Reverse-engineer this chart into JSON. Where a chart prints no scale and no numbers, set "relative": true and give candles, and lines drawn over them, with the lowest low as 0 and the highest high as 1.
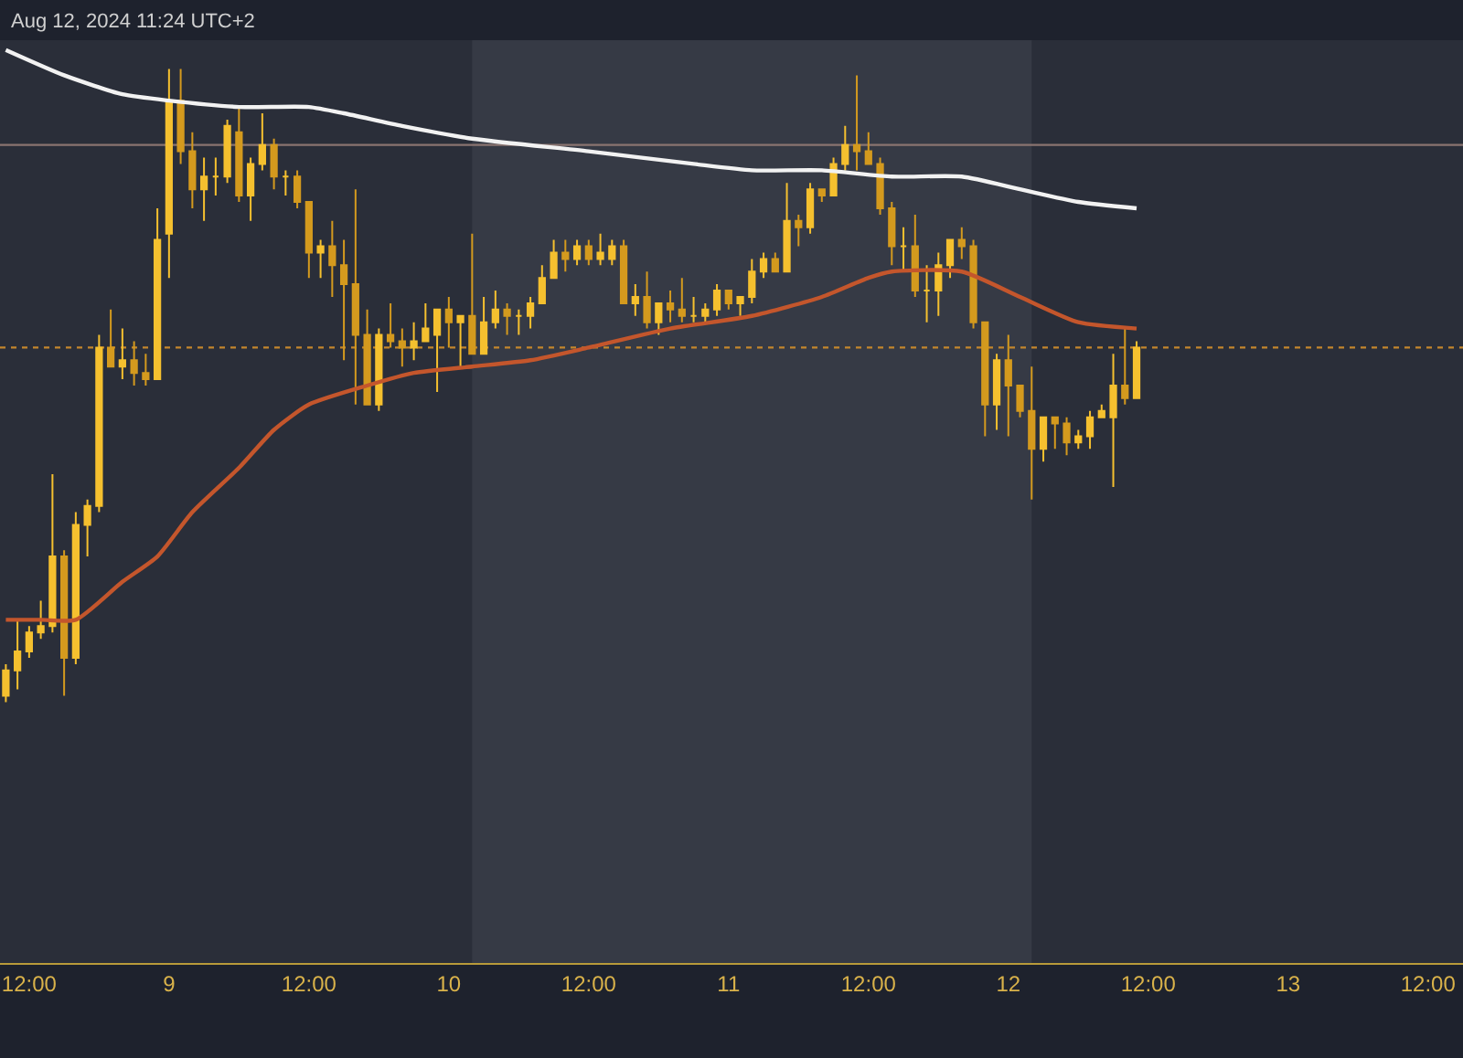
{
  "chart_data": {
    "type": "candlestick",
    "relative": true,
    "colors": [
      "#f5c02f",
      "#f5c02f",
      "#f5c02f",
      "#f5c02f",
      "#f5c02f",
      "#d49a1e",
      "#f5c02f",
      "#f5c02f",
      "#f5c02f",
      "#d49a1e",
      "#f5c02f",
      "#d49a1e",
      "#d49a1e",
      "#f5c02f",
      "#f5c02f",
      "#d49a1e",
      "#d49a1e",
      "#f5c02f",
      "#f5c02f",
      "#f5c02f",
      "#d49a1e",
      "#f5c02f",
      "#f5c02f",
      "#d49a1e",
      "#f5c02f",
      "#d49a1e",
      "#d49a1e",
      "#f5c02f",
      "#d49a1e",
      "#d49a1e",
      "#d49a1e",
      "#d49a1e",
      "#f5c02f",
      "#d49a1e",
      "#d49a1e",
      "#f5c02f",
      "#f5c02f",
      "#f5c02f",
      "#d49a1e",
      "#f5c02f",
      "#d49a1e",
      "#f5c02f",
      "#f5c02f",
      "#d49a1e",
      "#f5c02f",
      "#f5c02f",
      "#f5c02f",
      "#f5c02f",
      "#d49a1e",
      "#f5c02f",
      "#d49a1e",
      "#f5c02f",
      "#f5c02f",
      "#d49a1e",
      "#f5c02f",
      "#d49a1e",
      "#f5c02f",
      "#d49a1e",
      "#d49a1e",
      "#f5c02f",
      "#f5c02f",
      "#f5c02f",
      "#d49a1e",
      "#f5c02f",
      "#f5c02f",
      "#f5c02f",
      "#d49a1e",
      "#f5c02f",
      "#d49a1e",
      "#f5c02f",
      "#d49a1e",
      "#f5c02f",
      "#f5c02f",
      "#d49a1e",
      "#d49a1e",
      "#d49a1e",
      "#d49a1e",
      "#f5c02f",
      "#d49a1e",
      "#f5c02f",
      "#f5c02f",
      "#f5c02f",
      "#d49a1e",
      "#d49a1e",
      "#d49a1e",
      "#f5c02f",
      "#d49a1e",
      "#d49a1e",
      "#d49a1e",
      "#f5c02f",
      "#d49a1e",
      "#d49a1e",
      "#f5c02f",
      "#f5c02f",
      "#f5c02f",
      "#f5c02f",
      "#d49a1e",
      "#f5c02f"
    ],
    "annotations": [
      "Aug 12, 2024 11:24 UTC+2"
    ],
    "x": [
      "2024-08-08T10:00",
      "2024-08-08T11:00",
      "2024-08-08T12:00",
      "2024-08-08T13:00",
      "2024-08-08T14:00",
      "2024-08-08T15:00",
      "2024-08-08T16:00",
      "2024-08-08T17:00",
      "2024-08-08T18:00",
      "2024-08-08T19:00",
      "2024-08-08T20:00",
      "2024-08-08T21:00",
      "2024-08-08T22:00",
      "2024-08-08T23:00",
      "2024-08-09T00:00",
      "2024-08-09T01:00",
      "2024-08-09T02:00",
      "2024-08-09T03:00",
      "2024-08-09T04:00",
      "2024-08-09T05:00",
      "2024-08-09T06:00",
      "2024-08-09T07:00",
      "2024-08-09T08:00",
      "2024-08-09T09:00",
      "2024-08-09T10:00",
      "2024-08-09T11:00",
      "2024-08-09T12:00",
      "2024-08-09T13:00",
      "2024-08-09T14:00",
      "2024-08-09T15:00",
      "2024-08-09T16:00",
      "2024-08-09T17:00",
      "2024-08-09T18:00",
      "2024-08-09T19:00",
      "2024-08-09T20:00",
      "2024-08-09T21:00",
      "2024-08-09T22:00",
      "2024-08-09T23:00",
      "2024-08-10T00:00",
      "2024-08-10T01:00",
      "2024-08-10T02:00",
      "2024-08-10T03:00",
      "2024-08-10T04:00",
      "2024-08-10T05:00",
      "2024-08-10T06:00",
      "2024-08-10T07:00",
      "2024-08-10T08:00",
      "2024-08-10T09:00",
      "2024-08-10T10:00",
      "2024-08-10T11:00",
      "2024-08-10T12:00",
      "2024-08-10T13:00",
      "2024-08-10T14:00",
      "2024-08-10T15:00",
      "2024-08-10T16:00",
      "2024-08-10T17:00",
      "2024-08-10T18:00",
      "2024-08-10T19:00",
      "2024-08-10T20:00",
      "2024-08-10T21:00",
      "2024-08-10T22:00",
      "2024-08-10T23:00",
      "2024-08-11T00:00",
      "2024-08-11T01:00",
      "2024-08-11T02:00",
      "2024-08-11T03:00",
      "2024-08-11T04:00",
      "2024-08-11T05:00",
      "2024-08-11T06:00",
      "2024-08-11T07:00",
      "2024-08-11T08:00",
      "2024-08-11T09:00",
      "2024-08-11T10:00",
      "2024-08-11T11:00",
      "2024-08-11T12:00",
      "2024-08-11T13:00",
      "2024-08-11T14:00",
      "2024-08-11T15:00",
      "2024-08-11T16:00",
      "2024-08-11T17:00",
      "2024-08-11T18:00",
      "2024-08-11T19:00",
      "2024-08-11T20:00",
      "2024-08-11T21:00",
      "2024-08-11T22:00",
      "2024-08-11T23:00",
      "2024-08-12T00:00",
      "2024-08-12T01:00",
      "2024-08-12T02:00",
      "2024-08-12T03:00",
      "2024-08-12T04:00",
      "2024-08-12T05:00",
      "2024-08-12T06:00",
      "2024-08-12T07:00",
      "2024-08-12T08:00",
      "2024-08-12T09:00",
      "2024-08-12T10:00",
      "2024-08-12T11:00"
    ],
    "ohlc": [
      [
        0.01,
        0.06,
        0,
        0.05
      ],
      [
        0.05,
        0.13,
        0.02,
        0.08
      ],
      [
        0.08,
        0.12,
        0.07,
        0.11
      ],
      [
        0.11,
        0.16,
        0.1,
        0.12
      ],
      [
        0.12,
        0.36,
        0.11,
        0.23
      ],
      [
        0.23,
        0.24,
        0.01,
        0.07
      ],
      [
        0.07,
        0.3,
        0.06,
        0.28
      ],
      [
        0.28,
        0.32,
        0.23,
        0.31
      ],
      [
        0.31,
        0.58,
        0.3,
        0.56
      ],
      [
        0.56,
        0.62,
        0.53,
        0.53
      ],
      [
        0.53,
        0.59,
        0.51,
        0.54
      ],
      [
        0.54,
        0.57,
        0.5,
        0.52
      ],
      [
        0.52,
        0.55,
        0.5,
        0.51
      ],
      [
        0.51,
        0.78,
        0.51,
        0.73
      ],
      [
        0.74,
        1,
        0.67,
        0.95
      ],
      [
        0.95,
        1,
        0.85,
        0.87
      ],
      [
        0.87,
        0.9,
        0.78,
        0.81
      ],
      [
        0.81,
        0.86,
        0.76,
        0.83
      ],
      [
        0.83,
        0.86,
        0.8,
        0.83
      ],
      [
        0.83,
        0.92,
        0.82,
        0.91
      ],
      [
        0.9,
        0.94,
        0.79,
        0.8
      ],
      [
        0.8,
        0.86,
        0.76,
        0.85
      ],
      [
        0.85,
        0.93,
        0.84,
        0.88
      ],
      [
        0.88,
        0.89,
        0.81,
        0.83
      ],
      [
        0.83,
        0.84,
        0.8,
        0.83
      ],
      [
        0.83,
        0.84,
        0.78,
        0.79
      ],
      [
        0.79,
        0.79,
        0.67,
        0.71
      ],
      [
        0.71,
        0.73,
        0.67,
        0.72
      ],
      [
        0.72,
        0.76,
        0.64,
        0.69
      ],
      [
        0.69,
        0.73,
        0.54,
        0.66
      ],
      [
        0.66,
        0.81,
        0.47,
        0.58
      ],
      [
        0.58,
        0.62,
        0.47,
        0.47
      ],
      [
        0.47,
        0.59,
        0.46,
        0.58
      ],
      [
        0.58,
        0.63,
        0.56,
        0.57
      ],
      [
        0.57,
        0.59,
        0.53,
        0.56
      ],
      [
        0.56,
        0.6,
        0.54,
        0.57
      ],
      [
        0.57,
        0.63,
        0.57,
        0.59
      ],
      [
        0.58,
        0.62,
        0.49,
        0.62
      ],
      [
        0.62,
        0.64,
        0.56,
        0.6
      ],
      [
        0.6,
        0.61,
        0.53,
        0.61
      ],
      [
        0.61,
        0.74,
        0.55,
        0.55
      ],
      [
        0.55,
        0.64,
        0.55,
        0.6
      ],
      [
        0.6,
        0.65,
        0.59,
        0.62
      ],
      [
        0.62,
        0.63,
        0.58,
        0.61
      ],
      [
        0.61,
        0.62,
        0.58,
        0.61
      ],
      [
        0.61,
        0.64,
        0.59,
        0.63
      ],
      [
        0.63,
        0.69,
        0.63,
        0.67
      ],
      [
        0.67,
        0.73,
        0.67,
        0.71
      ],
      [
        0.71,
        0.73,
        0.68,
        0.7
      ],
      [
        0.7,
        0.73,
        0.69,
        0.72
      ],
      [
        0.72,
        0.73,
        0.69,
        0.7
      ],
      [
        0.7,
        0.74,
        0.69,
        0.71
      ],
      [
        0.7,
        0.73,
        0.69,
        0.72
      ],
      [
        0.72,
        0.73,
        0.63,
        0.63
      ],
      [
        0.63,
        0.66,
        0.61,
        0.64
      ],
      [
        0.64,
        0.68,
        0.59,
        0.6
      ],
      [
        0.6,
        0.63,
        0.58,
        0.63
      ],
      [
        0.63,
        0.65,
        0.6,
        0.62
      ],
      [
        0.62,
        0.67,
        0.6,
        0.61
      ],
      [
        0.61,
        0.64,
        0.6,
        0.61
      ],
      [
        0.61,
        0.63,
        0.6,
        0.62
      ],
      [
        0.62,
        0.66,
        0.61,
        0.65
      ],
      [
        0.65,
        0.65,
        0.62,
        0.63
      ],
      [
        0.63,
        0.64,
        0.61,
        0.64
      ],
      [
        0.64,
        0.7,
        0.63,
        0.68
      ],
      [
        0.68,
        0.71,
        0.67,
        0.7
      ],
      [
        0.7,
        0.71,
        0.68,
        0.68
      ],
      [
        0.68,
        0.82,
        0.68,
        0.76
      ],
      [
        0.76,
        0.77,
        0.72,
        0.75
      ],
      [
        0.75,
        0.82,
        0.74,
        0.81
      ],
      [
        0.81,
        0.81,
        0.79,
        0.8
      ],
      [
        0.8,
        0.86,
        0.8,
        0.85
      ],
      [
        0.85,
        0.91,
        0.84,
        0.88
      ],
      [
        0.88,
        0.99,
        0.84,
        0.87
      ],
      [
        0.87,
        0.9,
        0.85,
        0.85
      ],
      [
        0.85,
        0.86,
        0.77,
        0.78
      ],
      [
        0.78,
        0.79,
        0.69,
        0.72
      ],
      [
        0.72,
        0.75,
        0.68,
        0.72
      ],
      [
        0.72,
        0.77,
        0.64,
        0.65
      ],
      [
        0.65,
        0.69,
        0.6,
        0.65
      ],
      [
        0.65,
        0.71,
        0.61,
        0.69
      ],
      [
        0.69,
        0.73,
        0.67,
        0.73
      ],
      [
        0.73,
        0.75,
        0.7,
        0.72
      ],
      [
        0.72,
        0.73,
        0.59,
        0.6
      ],
      [
        0.6,
        0.6,
        0.42,
        0.47
      ],
      [
        0.47,
        0.55,
        0.43,
        0.54
      ],
      [
        0.54,
        0.58,
        0.42,
        0.5
      ],
      [
        0.5,
        0.5,
        0.45,
        0.46
      ],
      [
        0.46,
        0.53,
        0.32,
        0.4
      ],
      [
        0.4,
        0.45,
        0.38,
        0.45
      ],
      [
        0.45,
        0.45,
        0.4,
        0.44
      ],
      [
        0.44,
        0.45,
        0.39,
        0.41
      ],
      [
        0.41,
        0.43,
        0.4,
        0.42
      ],
      [
        0.42,
        0.46,
        0.4,
        0.45
      ],
      [
        0.45,
        0.47,
        0.45,
        0.46
      ],
      [
        0.45,
        0.55,
        0.34,
        0.5
      ],
      [
        0.5,
        0.59,
        0.47,
        0.48
      ],
      [
        0.48,
        0.57,
        0.48,
        0.56
      ]
    ],
    "series": [
      {
        "type": "line",
        "color": "#f2f2f2",
        "x": [
          "2024-08-08T10:00",
          "2024-08-08T15:00",
          "2024-08-08T20:00",
          "2024-08-09T00:00",
          "2024-08-09T06:00",
          "2024-08-09T12:00",
          "2024-08-09T15:00",
          "2024-08-09T20:00",
          "2024-08-10T02:00",
          "2024-08-10T12:00",
          "2024-08-10T21:00",
          "2024-08-11T02:00",
          "2024-08-11T08:00",
          "2024-08-11T14:00",
          "2024-08-11T20:00",
          "2024-08-12T01:00",
          "2024-08-12T06:00",
          "2024-08-12T11:00"
        ],
        "values": [
          1.03,
          0.99,
          0.96,
          0.95,
          0.94,
          0.94,
          0.93,
          0.91,
          0.89,
          0.87,
          0.85,
          0.84,
          0.84,
          0.83,
          0.83,
          0.81,
          0.79,
          0.78
        ]
      },
      {
        "type": "line",
        "color": "#c4562c",
        "x": [
          "2024-08-08T10:00",
          "2024-08-08T13:00",
          "2024-08-08T16:00",
          "2024-08-08T20:00",
          "2024-08-08T23:00",
          "2024-08-09T02:00",
          "2024-08-09T06:00",
          "2024-08-09T09:00",
          "2024-08-09T12:00",
          "2024-08-09T17:00",
          "2024-08-09T21:00",
          "2024-08-10T02:00",
          "2024-08-10T07:00",
          "2024-08-10T12:00",
          "2024-08-10T19:00",
          "2024-08-11T02:00",
          "2024-08-11T08:00",
          "2024-08-11T12:00",
          "2024-08-11T14:00",
          "2024-08-11T20:00",
          "2024-08-12T01:00",
          "2024-08-12T06:00",
          "2024-08-12T11:00"
        ],
        "values": [
          0.13,
          0.13,
          0.13,
          0.19,
          0.23,
          0.3,
          0.37,
          0.43,
          0.47,
          0.5,
          0.52,
          0.53,
          0.54,
          0.56,
          0.59,
          0.61,
          0.64,
          0.67,
          0.68,
          0.68,
          0.64,
          0.6,
          0.59
        ]
      }
    ],
    "ref_lines": [
      {
        "axis": "y",
        "value": 0.88,
        "color": "#8a7470",
        "line_style": "solid"
      },
      {
        "axis": "y",
        "value": 0.56,
        "color": "#c4862c",
        "line_style": "dotted"
      }
    ],
    "bands": [
      {
        "axis": "x",
        "from": "2024-08-10T02:00",
        "to": "2024-08-12T02:00",
        "color": "#363a45"
      }
    ],
    "xlim": [
      "2024-08-08T09:30",
      "2024-08-13T15:00"
    ],
    "xticks": [
      {
        "value": "2024-08-08T12:00",
        "label": "12:00"
      },
      {
        "value": "2024-08-09T00:00",
        "label": "9"
      },
      {
        "value": "2024-08-09T12:00",
        "label": "12:00"
      },
      {
        "value": "2024-08-10T00:00",
        "label": "10"
      },
      {
        "value": "2024-08-10T12:00",
        "label": "12:00"
      },
      {
        "value": "2024-08-11T00:00",
        "label": "11"
      },
      {
        "value": "2024-08-11T12:00",
        "label": "12:00"
      },
      {
        "value": "2024-08-12T00:00",
        "label": "12"
      },
      {
        "value": "2024-08-12T12:00",
        "label": "12:00"
      },
      {
        "value": "2024-08-13T00:00",
        "label": "13"
      },
      {
        "value": "2024-08-13T12:00",
        "label": "12:00"
      }
    ],
    "grid": false
  }
}
